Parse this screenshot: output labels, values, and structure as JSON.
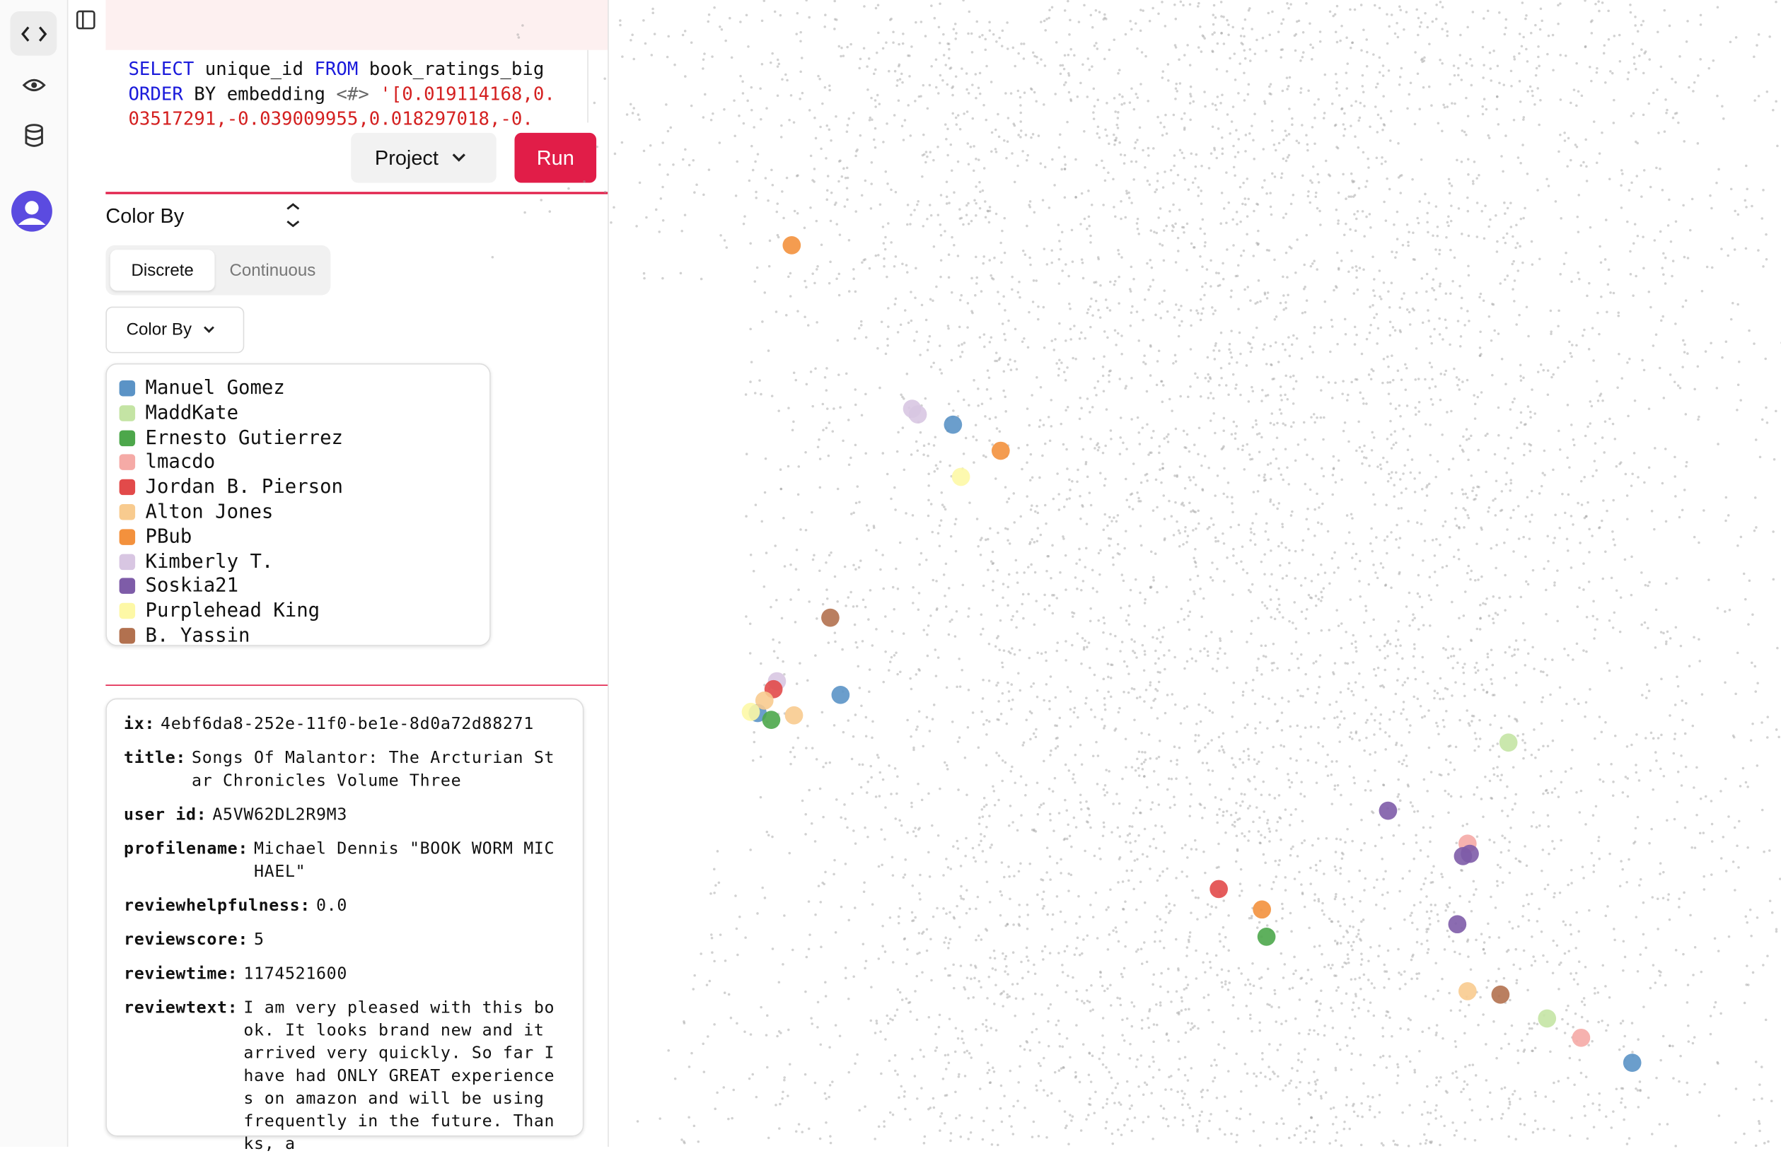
{
  "editor": {
    "sql": [
      [
        {
          "text": "SELECT",
          "kind": "kw"
        },
        {
          "text": " unique_id ",
          "kind": "plain"
        },
        {
          "text": "FROM",
          "kind": "kw"
        },
        {
          "text": " book_ratings_big",
          "kind": "plain"
        }
      ],
      [
        {
          "text": "ORDER",
          "kind": "kw"
        },
        {
          "text": " BY embedding ",
          "kind": "plain"
        },
        {
          "text": "<#>",
          "kind": "op"
        },
        {
          "text": " '[0.019114168,0.",
          "kind": "str"
        }
      ],
      [
        {
          "text": "03517291,-0.039009955,0.018297018,-0.",
          "kind": "str"
        }
      ]
    ],
    "project_button": "Project",
    "run_button": "Run"
  },
  "color_by": {
    "heading": "Color By",
    "tabs": [
      "Discrete",
      "Continuous"
    ],
    "dropdown": "Color By",
    "legend": [
      {
        "name": "Manuel Gomez",
        "color": "#5b93c6"
      },
      {
        "name": "MaddKate",
        "color": "#c4e4a4"
      },
      {
        "name": "Ernesto Gutierrez",
        "color": "#4da74b"
      },
      {
        "name": "lmacdo",
        "color": "#f5aaa6"
      },
      {
        "name": "Jordan B. Pierson",
        "color": "#e24a4a"
      },
      {
        "name": "Alton Jones",
        "color": "#f8cb8f"
      },
      {
        "name": "PBub",
        "color": "#f3913d"
      },
      {
        "name": "Kimberly T.",
        "color": "#d8c6e2"
      },
      {
        "name": "Soskia21",
        "color": "#7e5ca8"
      },
      {
        "name": "Purplehead King",
        "color": "#fdf8a6"
      },
      {
        "name": "B. Yassin",
        "color": "#b2714f"
      }
    ]
  },
  "record": [
    {
      "key": "ix:",
      "value": "4ebf6da8-252e-11f0-be1e-8d0a72d88271"
    },
    {
      "key": "title:",
      "value": "Songs Of Malantor: The Arcturian Star Chronicles Volume Three"
    },
    {
      "key": "user id:",
      "value": "A5VW62DL2R9M3"
    },
    {
      "key": "profilename:",
      "value": "Michael Dennis \"BOOK WORM MICHAEL\""
    },
    {
      "key": "reviewhelpfulness:",
      "value": "0.0"
    },
    {
      "key": "reviewscore:",
      "value": "5"
    },
    {
      "key": "reviewtime:",
      "value": "1174521600"
    },
    {
      "key": "reviewtext:",
      "value": "I am very pleased with this book. It looks brand new and it arrived very quickly. So far I have had ONLY GREAT experiences on amazon and will be using frequently in the future. Thanks, a"
    }
  ]
}
